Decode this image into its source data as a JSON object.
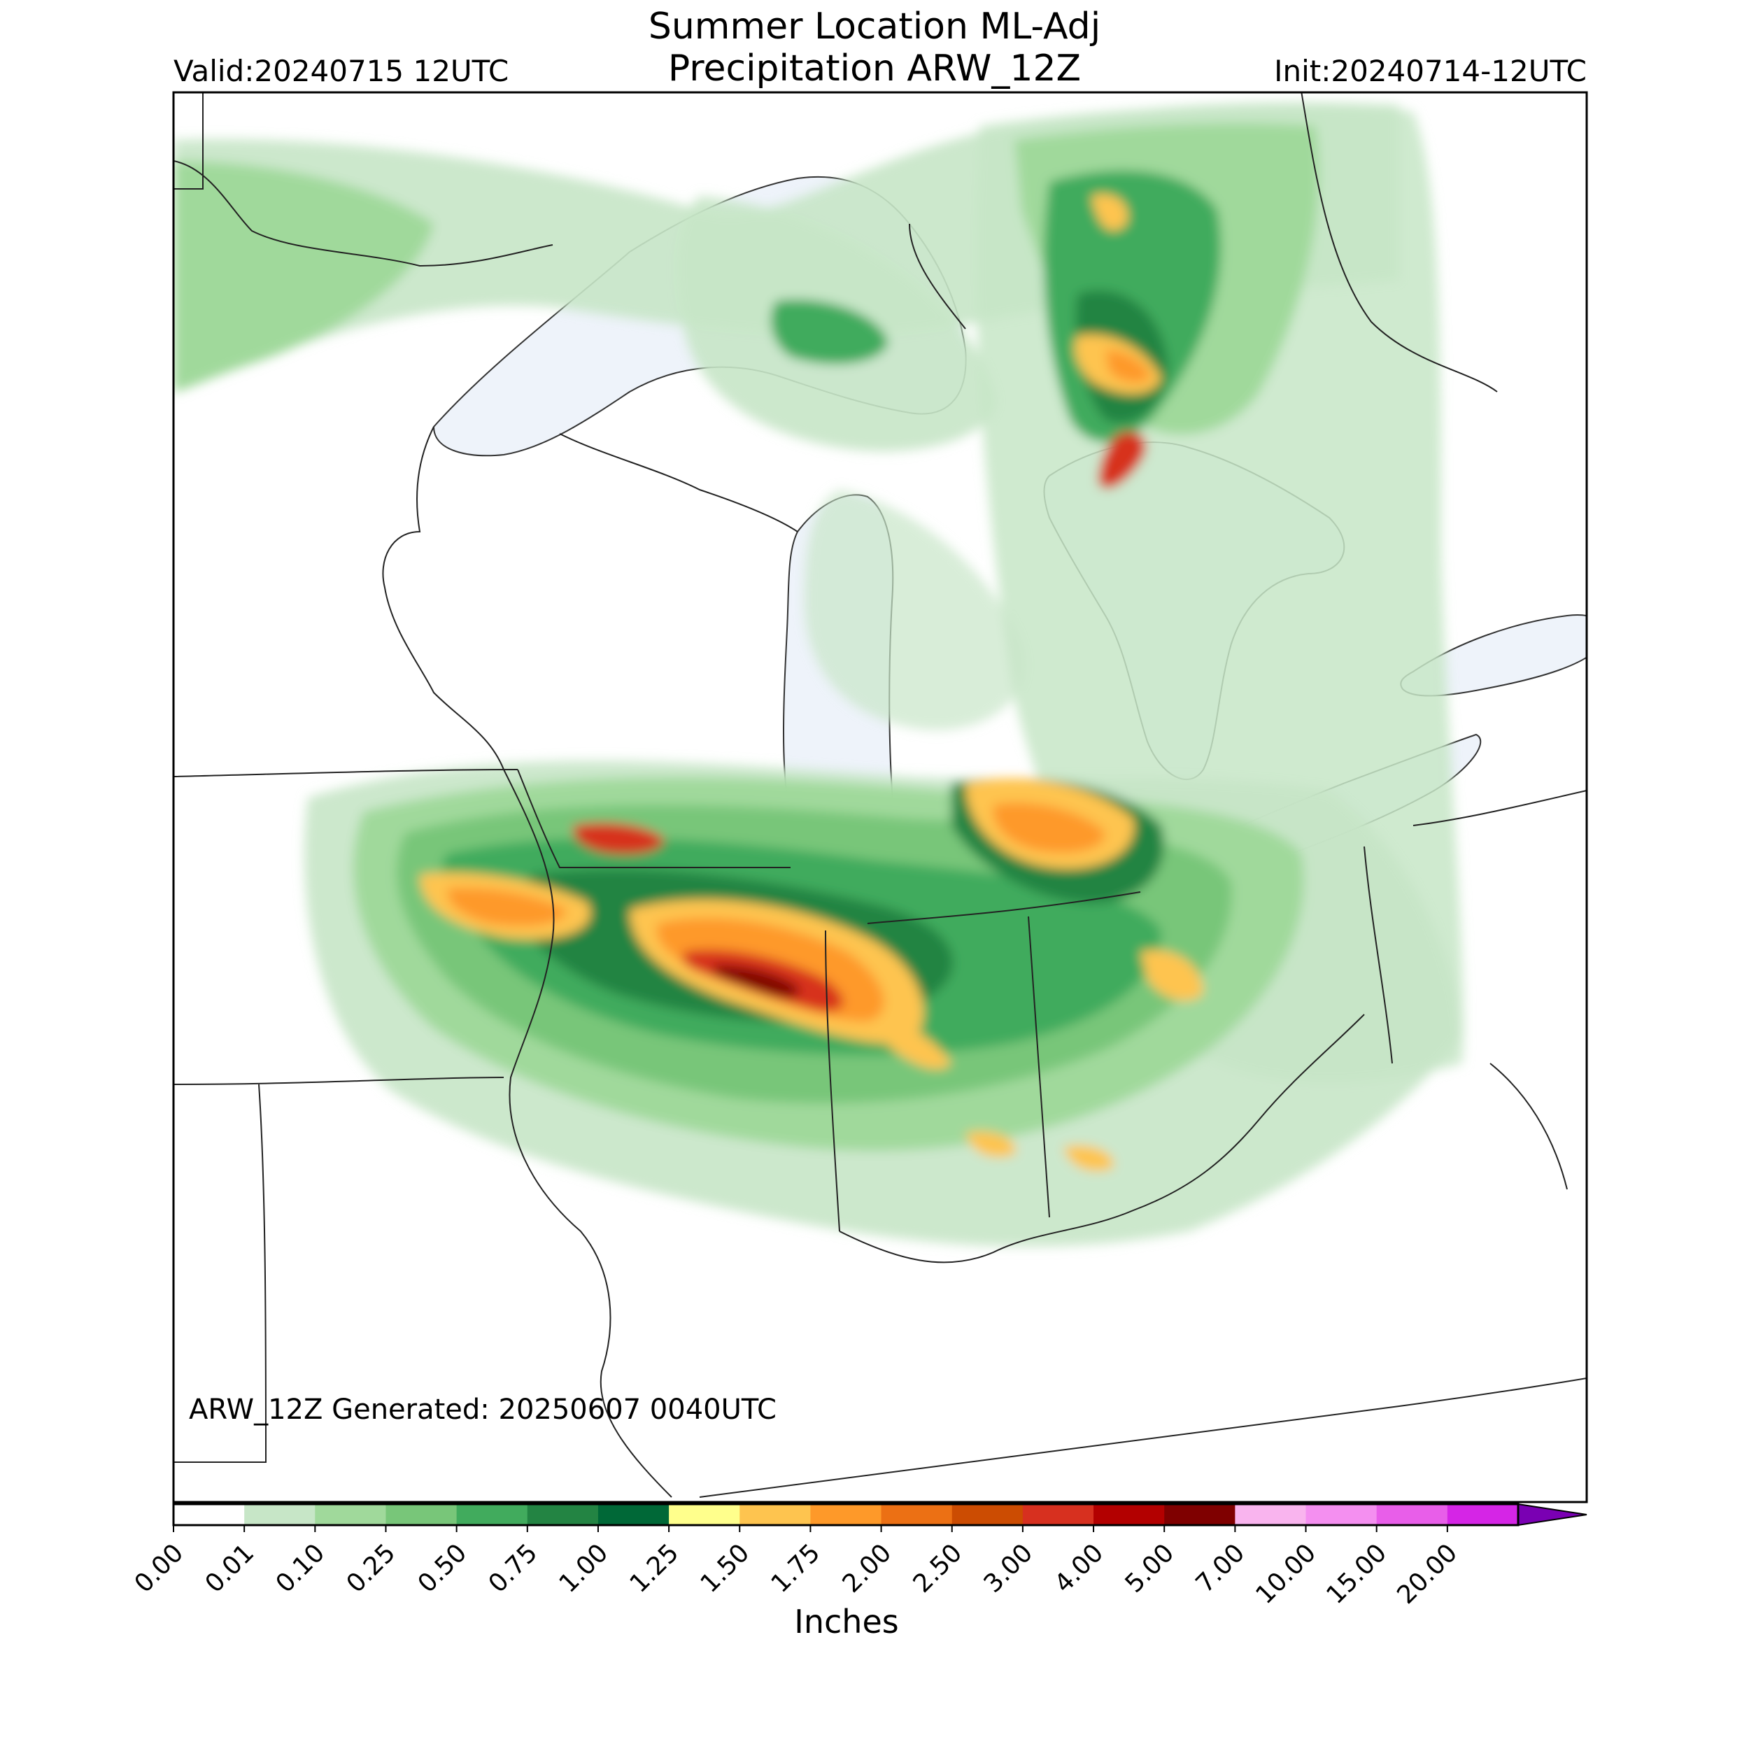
{
  "header": {
    "title_line1": "Summer Location ML-Adj",
    "title_line2": "Precipitation ARW_12Z",
    "valid": "Valid:20240715 12UTC",
    "init": "Init:20240714-12UTC"
  },
  "footer": {
    "generated": "ARW_12Z Generated: 20250607 0040UTC"
  },
  "colorbar": {
    "label": "Inches",
    "ticks": [
      "0.00",
      "0.01",
      "0.10",
      "0.25",
      "0.50",
      "0.75",
      "1.00",
      "1.25",
      "1.50",
      "1.75",
      "2.00",
      "2.50",
      "3.00",
      "4.00",
      "5.00",
      "7.00",
      "10.00",
      "15.00",
      "20.00"
    ],
    "colors": [
      "#ffffff",
      "#c7e6c7",
      "#a0d99b",
      "#78c679",
      "#41ab5d",
      "#238443",
      "#006837",
      "#ffff8c",
      "#fec44f",
      "#fe9929",
      "#ec7014",
      "#cc4c02",
      "#d7301f",
      "#b30000",
      "#7f0000",
      "#f9b4ee",
      "#f48ff0",
      "#e85ee9",
      "#d525e6",
      "#a400c9"
    ],
    "extend_color": "#7a00b3"
  },
  "map": {
    "region": "Great Lakes / Ohio Valley",
    "water_color": "#f2f6fc"
  }
}
